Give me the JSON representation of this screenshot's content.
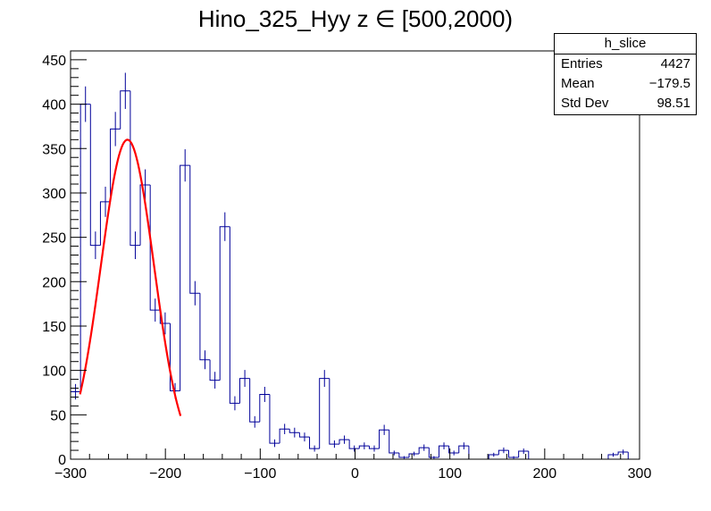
{
  "chart_data": {
    "type": "bar",
    "title": "Hino_325_Hyy z  ∈ [500,2000)",
    "xlabel": "",
    "ylabel": "",
    "xlim": [
      -300,
      300
    ],
    "ylim": [
      0,
      460
    ],
    "bin_width": 10.5,
    "x_ticks": [
      -300,
      -200,
      -100,
      0,
      100,
      200,
      300
    ],
    "x_tick_labels": [
      "−300",
      "−200",
      "−100",
      "0",
      "100",
      "200",
      "300"
    ],
    "y_ticks": [
      0,
      50,
      100,
      150,
      200,
      250,
      300,
      350,
      400,
      450
    ],
    "y_tick_labels": [
      "0",
      "50",
      "100",
      "150",
      "200",
      "250",
      "300",
      "350",
      "400",
      "450"
    ],
    "histogram_color": "#000099",
    "fit_color": "#ff0000",
    "bins": [
      {
        "x": -294.75,
        "y": 76
      },
      {
        "x": -284.25,
        "y": 400
      },
      {
        "x": -273.75,
        "y": 241
      },
      {
        "x": -263.25,
        "y": 290
      },
      {
        "x": -252.75,
        "y": 372
      },
      {
        "x": -242.25,
        "y": 415
      },
      {
        "x": -231.75,
        "y": 241
      },
      {
        "x": -221.25,
        "y": 309
      },
      {
        "x": -210.75,
        "y": 168
      },
      {
        "x": -200.25,
        "y": 153
      },
      {
        "x": -189.75,
        "y": 77
      },
      {
        "x": -179.25,
        "y": 331
      },
      {
        "x": -168.75,
        "y": 187
      },
      {
        "x": -158.25,
        "y": 112
      },
      {
        "x": -147.75,
        "y": 89
      },
      {
        "x": -137.25,
        "y": 262
      },
      {
        "x": -126.75,
        "y": 63
      },
      {
        "x": -116.25,
        "y": 91
      },
      {
        "x": -105.75,
        "y": 42
      },
      {
        "x": -95.25,
        "y": 73
      },
      {
        "x": -84.75,
        "y": 18
      },
      {
        "x": -74.25,
        "y": 34
      },
      {
        "x": -63.75,
        "y": 30
      },
      {
        "x": -53.25,
        "y": 25
      },
      {
        "x": -42.75,
        "y": 12
      },
      {
        "x": -32.25,
        "y": 91
      },
      {
        "x": -21.75,
        "y": 17
      },
      {
        "x": -11.25,
        "y": 22
      },
      {
        "x": -0.75,
        "y": 12
      },
      {
        "x": 9.75,
        "y": 15
      },
      {
        "x": 20.25,
        "y": 12
      },
      {
        "x": 30.75,
        "y": 33
      },
      {
        "x": 41.25,
        "y": 7
      },
      {
        "x": 51.75,
        "y": 2
      },
      {
        "x": 62.25,
        "y": 6
      },
      {
        "x": 72.75,
        "y": 13
      },
      {
        "x": 83.25,
        "y": 2
      },
      {
        "x": 93.75,
        "y": 15
      },
      {
        "x": 104.25,
        "y": 7
      },
      {
        "x": 114.75,
        "y": 15
      },
      {
        "x": 125.25,
        "y": 0
      },
      {
        "x": 135.75,
        "y": 0
      },
      {
        "x": 146.25,
        "y": 5
      },
      {
        "x": 156.75,
        "y": 10
      },
      {
        "x": 167.25,
        "y": 2
      },
      {
        "x": 177.75,
        "y": 9
      },
      {
        "x": 188.25,
        "y": 0
      },
      {
        "x": 198.75,
        "y": 0
      },
      {
        "x": 209.25,
        "y": 0
      },
      {
        "x": 219.75,
        "y": 0
      },
      {
        "x": 230.25,
        "y": 0
      },
      {
        "x": 240.75,
        "y": 0
      },
      {
        "x": 251.25,
        "y": 0
      },
      {
        "x": 261.75,
        "y": 0
      },
      {
        "x": 272.25,
        "y": 5
      },
      {
        "x": 282.75,
        "y": 8
      },
      {
        "x": 293.25,
        "y": 0
      }
    ],
    "fit": {
      "type": "gaussian",
      "amplitude": 360,
      "mean": -240,
      "sigma": 28,
      "range": [
        -290,
        -184
      ]
    }
  },
  "stats_box": {
    "title": "h_slice",
    "rows": [
      {
        "label": "Entries",
        "value": "4427"
      },
      {
        "label": "Mean",
        "value": "−179.5"
      },
      {
        "label": "Std Dev",
        "value": "98.51"
      }
    ]
  }
}
